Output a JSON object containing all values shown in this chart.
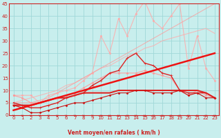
{
  "xlabel": "Vent moyen/en rafales ( km/h )",
  "xlim": [
    -0.5,
    23.5
  ],
  "ylim": [
    0,
    45
  ],
  "yticks": [
    0,
    5,
    10,
    15,
    20,
    25,
    30,
    35,
    40,
    45
  ],
  "xticks": [
    0,
    1,
    2,
    3,
    4,
    5,
    6,
    7,
    8,
    9,
    10,
    11,
    12,
    13,
    14,
    15,
    16,
    17,
    18,
    19,
    20,
    21,
    22,
    23
  ],
  "bg_color": "#c8eeed",
  "grid_color": "#a0d8d8",
  "series": [
    {
      "color": "#ffaaaa",
      "alpha": 0.85,
      "lw": 0.8,
      "marker": "o",
      "ms": 1.8,
      "data": [
        8,
        8,
        8,
        5,
        8,
        9,
        10,
        11,
        14,
        17,
        32,
        25,
        39,
        32,
        41,
        46,
        38,
        35,
        40,
        45,
        19,
        32,
        19,
        14
      ]
    },
    {
      "color": "#ffaaaa",
      "alpha": 0.75,
      "lw": 0.8,
      "marker": null,
      "ms": 0,
      "data": [
        5,
        6,
        7,
        8,
        9,
        10,
        12,
        13,
        15,
        17,
        19,
        20,
        22,
        24,
        25,
        27,
        28,
        30,
        31,
        32,
        33,
        34,
        35,
        33
      ]
    },
    {
      "color": "#ff9999",
      "alpha": 0.9,
      "lw": 0.8,
      "marker": "o",
      "ms": 1.8,
      "data": [
        8,
        7,
        5,
        5,
        6,
        7,
        8,
        9,
        11,
        13,
        15,
        17,
        17,
        17,
        17,
        18,
        17,
        16,
        15,
        10,
        8,
        10,
        8,
        7
      ]
    },
    {
      "color": "#ff9999",
      "alpha": 0.7,
      "lw": 0.8,
      "marker": null,
      "ms": 0,
      "data": [
        5,
        5,
        5,
        6,
        7,
        9,
        11,
        13,
        15,
        17,
        19,
        21,
        23,
        25,
        27,
        29,
        31,
        33,
        35,
        37,
        39,
        41,
        43,
        45
      ]
    },
    {
      "color": "#dd2222",
      "alpha": 1.0,
      "lw": 1.0,
      "marker": "+",
      "ms": 3.0,
      "data": [
        5,
        4,
        3,
        3,
        4,
        5,
        7,
        8,
        9,
        12,
        14,
        17,
        18,
        23,
        25,
        21,
        20,
        17,
        16,
        10,
        9,
        9,
        9,
        7
      ]
    },
    {
      "color": "#dd2222",
      "alpha": 1.0,
      "lw": 1.5,
      "marker": null,
      "ms": 0,
      "data": [
        4,
        4,
        4,
        5,
        6,
        7,
        7,
        8,
        9,
        9,
        9,
        9,
        10,
        10,
        10,
        10,
        10,
        10,
        10,
        10,
        10,
        10,
        9,
        7
      ]
    },
    {
      "color": "#cc1111",
      "alpha": 1.0,
      "lw": 0.8,
      "marker": "D",
      "ms": 1.5,
      "data": [
        4,
        3,
        1,
        1,
        2,
        3,
        4,
        5,
        5,
        6,
        7,
        8,
        9,
        9,
        10,
        10,
        9,
        9,
        9,
        10,
        8,
        9,
        7,
        7
      ]
    },
    {
      "color": "#ee1111",
      "alpha": 1.0,
      "lw": 1.8,
      "marker": null,
      "ms": 0,
      "data": [
        2,
        3,
        4,
        5,
        6,
        7,
        8,
        9,
        10,
        11,
        12,
        13,
        14,
        15,
        16,
        17,
        18,
        19,
        20,
        21,
        22,
        23,
        24,
        25
      ]
    }
  ]
}
